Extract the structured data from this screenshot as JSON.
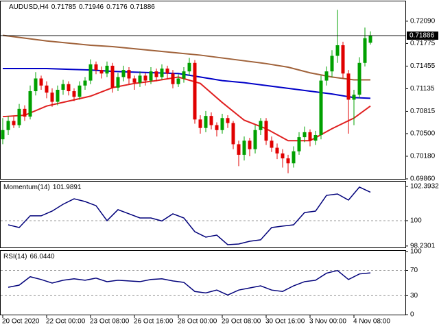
{
  "chart_data": [
    {
      "type": "candlestick",
      "title": "AUDUSD,H4",
      "categories": [
        "20 Oct 2020",
        null,
        null,
        null,
        null,
        null,
        null,
        null,
        "22 Oct 00:00",
        null,
        null,
        null,
        null,
        null,
        null,
        null,
        "23 Oct 08:00",
        null,
        null,
        null,
        null,
        null,
        null,
        null,
        "26 Oct 16:00",
        null,
        null,
        null,
        null,
        null,
        null,
        null,
        "28 Oct 00:00",
        null,
        null,
        null,
        null,
        null,
        null,
        null,
        "29 Oct 08:00",
        null,
        null,
        null,
        null,
        null,
        null,
        null,
        "30 Oct 16:00",
        null,
        null,
        null,
        null,
        null,
        null,
        null,
        "3 Nov 00:00",
        null,
        null,
        null,
        null,
        null,
        null,
        null,
        "4 Nov 08:00",
        null,
        null,
        null
      ],
      "open": [
        0.7042,
        0.7055,
        0.7068,
        0.7062,
        0.7085,
        0.7074,
        0.711,
        0.7128,
        0.7118,
        0.7108,
        0.7095,
        0.7112,
        0.712,
        0.711,
        0.7102,
        0.7118,
        0.7125,
        0.7148,
        0.714,
        0.7135,
        0.7146,
        0.7115,
        0.713,
        0.714,
        0.7128,
        0.7122,
        0.7132,
        0.7125,
        0.7138,
        0.713,
        0.7142,
        0.7135,
        0.712,
        0.7128,
        0.7138,
        0.715,
        0.707,
        0.7058,
        0.7075,
        0.7062,
        0.7055,
        0.7072,
        0.7065,
        0.7035,
        0.702,
        0.704,
        0.7028,
        0.7055,
        0.7068,
        0.704,
        0.703,
        0.7022,
        0.7015,
        0.7008,
        0.7025,
        0.7045,
        0.7052,
        0.704,
        0.7048,
        0.7125,
        0.7138,
        0.716,
        0.7175,
        0.7135,
        0.7098,
        0.7105,
        0.715,
        0.71785
      ],
      "high": [
        0.7072,
        0.7075,
        0.7074,
        0.7092,
        0.709,
        0.7118,
        0.7137,
        0.7132,
        0.7124,
        0.7114,
        0.7118,
        0.7126,
        0.7124,
        0.7114,
        0.7124,
        0.713,
        0.7155,
        0.7152,
        0.7145,
        0.7152,
        0.715,
        0.7136,
        0.7146,
        0.7144,
        0.7132,
        0.7138,
        0.7136,
        0.7144,
        0.7142,
        0.7148,
        0.7146,
        0.714,
        0.7134,
        0.7144,
        0.7157,
        0.7154,
        0.7076,
        0.7082,
        0.708,
        0.7066,
        0.7078,
        0.7076,
        0.7068,
        0.704,
        0.7046,
        0.7044,
        0.7062,
        0.7072,
        0.7072,
        0.7046,
        0.7036,
        0.7028,
        0.702,
        0.7032,
        0.7052,
        0.706,
        0.7056,
        0.7054,
        0.7132,
        0.7145,
        0.7168,
        0.7225,
        0.718,
        0.714,
        0.7112,
        0.7158,
        0.72,
        0.71946
      ],
      "low": [
        0.7035,
        0.7048,
        0.7058,
        0.7058,
        0.7068,
        0.707,
        0.7104,
        0.7112,
        0.71,
        0.7088,
        0.709,
        0.7105,
        0.7104,
        0.7096,
        0.7098,
        0.7112,
        0.712,
        0.7134,
        0.7128,
        0.713,
        0.7108,
        0.711,
        0.7124,
        0.712,
        0.7112,
        0.7116,
        0.7118,
        0.712,
        0.7124,
        0.7126,
        0.7128,
        0.7114,
        0.7116,
        0.7122,
        0.7132,
        0.7064,
        0.705,
        0.7052,
        0.7056,
        0.7046,
        0.705,
        0.7058,
        0.7028,
        0.7004,
        0.7012,
        0.7018,
        0.7022,
        0.7048,
        0.7034,
        0.7024,
        0.7014,
        0.7002,
        0.6994,
        0.7002,
        0.702,
        0.7038,
        0.7032,
        0.7034,
        0.7042,
        0.7118,
        0.713,
        0.715,
        0.7128,
        0.705,
        0.7062,
        0.71,
        0.7145,
        0.7176
      ],
      "close": [
        0.7055,
        0.7068,
        0.7062,
        0.7085,
        0.7074,
        0.711,
        0.7128,
        0.7118,
        0.7108,
        0.7095,
        0.7112,
        0.712,
        0.711,
        0.7102,
        0.7118,
        0.7125,
        0.7148,
        0.714,
        0.7135,
        0.7146,
        0.7115,
        0.713,
        0.714,
        0.7128,
        0.7122,
        0.7132,
        0.7125,
        0.7138,
        0.713,
        0.7142,
        0.7135,
        0.712,
        0.7128,
        0.7138,
        0.715,
        0.707,
        0.7058,
        0.7075,
        0.7062,
        0.7055,
        0.7072,
        0.7065,
        0.7035,
        0.702,
        0.704,
        0.7028,
        0.7055,
        0.7068,
        0.704,
        0.703,
        0.7022,
        0.7015,
        0.7008,
        0.7025,
        0.7045,
        0.7052,
        0.704,
        0.7048,
        0.7125,
        0.7138,
        0.716,
        0.7175,
        0.7135,
        0.7098,
        0.7105,
        0.715,
        0.7185,
        0.71886
      ],
      "up_color": "#00a000",
      "down_color": "#e00000",
      "series": [
        {
          "color": "#a0623a",
          "x": [
            0,
            4,
            8,
            12,
            16,
            20,
            24,
            28,
            32,
            36,
            40,
            44,
            48,
            52,
            56,
            60,
            64,
            67
          ],
          "values": [
            0.7189,
            0.7185,
            0.7181,
            0.7178,
            0.7175,
            0.7173,
            0.717,
            0.7167,
            0.7164,
            0.7161,
            0.7157,
            0.7153,
            0.7149,
            0.7144,
            0.7136,
            0.713,
            0.7126,
            0.7126
          ]
        },
        {
          "color": "#0000c8",
          "x": [
            0,
            4,
            8,
            12,
            16,
            20,
            24,
            28,
            32,
            36,
            40,
            44,
            48,
            52,
            56,
            60,
            64,
            67
          ],
          "values": [
            0.7142,
            0.7142,
            0.7142,
            0.7141,
            0.714,
            0.7138,
            0.7137,
            0.7136,
            0.7135,
            0.713,
            0.7125,
            0.7122,
            0.7118,
            0.7114,
            0.711,
            0.7106,
            0.7101,
            0.71
          ]
        },
        {
          "color": "#e02020",
          "x": [
            0,
            4,
            8,
            12,
            16,
            20,
            24,
            28,
            32,
            36,
            40,
            44,
            48,
            52,
            56,
            60,
            64,
            67
          ],
          "values": [
            0.7074,
            0.7076,
            0.7089,
            0.7096,
            0.7103,
            0.7115,
            0.7121,
            0.7125,
            0.713,
            0.7121,
            0.7094,
            0.7069,
            0.7057,
            0.704,
            0.704,
            0.7057,
            0.7072,
            0.7089
          ]
        }
      ],
      "ylim": [
        0.6985,
        0.7238
      ],
      "yticks": [
        {
          "value": 0.7209,
          "label": "0.72090"
        },
        {
          "value": 0.71775,
          "label": "0.71775"
        },
        {
          "value": 0.71455,
          "label": "0.71455"
        },
        {
          "value": 0.71135,
          "label": "0.71135"
        },
        {
          "value": 0.70815,
          "label": "0.70815"
        },
        {
          "value": 0.705,
          "label": "0.70500"
        },
        {
          "value": 0.7018,
          "label": "0.70180"
        },
        {
          "value": 0.6986,
          "label": "0.69860"
        }
      ],
      "price_line": true
    },
    {
      "type": "line",
      "title": "Momentum(14)",
      "x": [
        1,
        3,
        5,
        7,
        9,
        11,
        13,
        15,
        17,
        19,
        21,
        23,
        25,
        27,
        29,
        31,
        33,
        35,
        37,
        39,
        41,
        43,
        45,
        47,
        49,
        51,
        53,
        55,
        57,
        59,
        61,
        63,
        65,
        67
      ],
      "series": [
        {
          "color": "#00007a",
          "values": [
            99.71,
            99.52,
            100.34,
            100.34,
            100.67,
            101.15,
            101.53,
            101.34,
            101.05,
            100.0,
            100.77,
            100.48,
            100.19,
            100.19,
            99.98,
            100.48,
            100.19,
            99.23,
            98.85,
            98.99,
            98.32,
            98.37,
            98.56,
            98.66,
            99.52,
            99.62,
            99.71,
            100.57,
            100.67,
            101.77,
            101.87,
            101.44,
            102.35,
            101.9891
          ]
        }
      ],
      "ylim": [
        98.08,
        102.78
      ],
      "yticks": [
        102.3932,
        100,
        98.2301
      ],
      "levels": [
        100
      ]
    },
    {
      "type": "line",
      "title": "RSI(14)",
      "x": [
        1,
        3,
        5,
        7,
        9,
        11,
        13,
        15,
        17,
        19,
        21,
        23,
        25,
        27,
        29,
        31,
        33,
        35,
        37,
        39,
        41,
        43,
        45,
        47,
        49,
        51,
        53,
        55,
        57,
        59,
        61,
        63,
        65,
        67
      ],
      "series": [
        {
          "color": "#00007a",
          "values": [
            43.3,
            46.7,
            60.0,
            55.6,
            50.0,
            54.4,
            56.7,
            54.4,
            57.8,
            52.2,
            54.4,
            53.3,
            52.2,
            55.6,
            56.7,
            53.3,
            51.1,
            36.7,
            34.4,
            38.9,
            31.1,
            38.9,
            42.2,
            45.6,
            38.9,
            36.7,
            45.6,
            52.2,
            54.4,
            65.6,
            69.8,
            55.6,
            64.4,
            66.044
          ],
          "value_labels": [
            null,
            null,
            null,
            null,
            null,
            null,
            null,
            null,
            null,
            null,
            null,
            null,
            null,
            null,
            null,
            null,
            null,
            null,
            null,
            null,
            null,
            null,
            null,
            null,
            null,
            null,
            null,
            null,
            null,
            null,
            null,
            null,
            null,
            "66.0440"
          ]
        }
      ],
      "ylim": [
        -1,
        102
      ],
      "yticks": [
        100,
        70,
        30,
        0
      ],
      "levels": [
        70,
        30
      ]
    }
  ]
}
